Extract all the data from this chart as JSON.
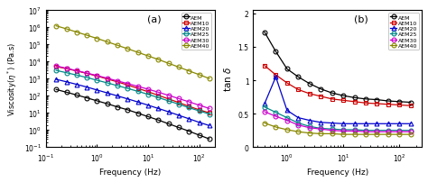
{
  "freq_a": [
    0.1585,
    0.2512,
    0.3981,
    0.631,
    1.0,
    1.585,
    2.512,
    3.981,
    6.31,
    10.0,
    15.85,
    25.12,
    39.81,
    63.1,
    100.0,
    158.5
  ],
  "viscosity": {
    "AEM": [
      230,
      160,
      110,
      75,
      50,
      34,
      22,
      15,
      9.5,
      6.0,
      3.8,
      2.3,
      1.4,
      0.85,
      0.5,
      0.3
    ],
    "AEM10": [
      5000,
      3800,
      2800,
      2000,
      1400,
      950,
      640,
      420,
      270,
      170,
      105,
      65,
      40,
      24,
      15,
      10
    ],
    "AEM20": [
      900,
      650,
      460,
      320,
      215,
      145,
      97,
      65,
      43,
      28,
      18,
      11.5,
      7.2,
      4.5,
      2.8,
      1.8
    ],
    "AEM25": [
      3000,
      2200,
      1600,
      1150,
      800,
      560,
      385,
      265,
      180,
      120,
      78,
      50,
      32,
      20,
      13,
      8.5
    ],
    "AEM30": [
      5500,
      4000,
      2900,
      2100,
      1500,
      1050,
      730,
      510,
      350,
      240,
      160,
      105,
      68,
      44,
      28,
      18
    ],
    "AEM40": [
      1200000,
      800000,
      520000,
      340000,
      220000,
      140000,
      88000,
      55000,
      34000,
      21000,
      13000,
      7800,
      4700,
      2800,
      1700,
      1000
    ]
  },
  "freq_b": [
    0.3981,
    0.631,
    1.0,
    1.585,
    2.512,
    3.981,
    6.31,
    10.0,
    15.85,
    25.12,
    39.81,
    63.1,
    100.0,
    158.5
  ],
  "tan_delta": {
    "AEM": [
      1.72,
      1.43,
      1.17,
      1.05,
      0.95,
      0.87,
      0.81,
      0.77,
      0.74,
      0.72,
      0.71,
      0.69,
      0.68,
      0.67
    ],
    "AEM10": [
      1.22,
      1.08,
      0.96,
      0.86,
      0.8,
      0.76,
      0.72,
      0.7,
      0.68,
      0.66,
      0.65,
      0.64,
      0.63,
      0.62
    ],
    "AEM20": [
      0.65,
      1.05,
      0.55,
      0.44,
      0.4,
      0.37,
      0.36,
      0.35,
      0.35,
      0.35,
      0.35,
      0.35,
      0.35,
      0.35
    ],
    "AEM25": [
      0.6,
      0.52,
      0.44,
      0.36,
      0.31,
      0.28,
      0.27,
      0.26,
      0.26,
      0.25,
      0.25,
      0.25,
      0.25,
      0.25
    ],
    "AEM30": [
      0.53,
      0.46,
      0.4,
      0.33,
      0.29,
      0.27,
      0.25,
      0.24,
      0.24,
      0.23,
      0.23,
      0.23,
      0.23,
      0.23
    ],
    "AEM40": [
      0.36,
      0.3,
      0.26,
      0.23,
      0.21,
      0.2,
      0.2,
      0.19,
      0.19,
      0.19,
      0.19,
      0.19,
      0.19,
      0.19
    ]
  },
  "colors": {
    "AEM": "#000000",
    "AEM10": "#cc0000",
    "AEM20": "#0000cc",
    "AEM25": "#008888",
    "AEM30": "#cc00cc",
    "AEM40": "#888800"
  },
  "markers": {
    "AEM": "o",
    "AEM10": "s",
    "AEM20": "^",
    "AEM25": "o",
    "AEM30": "o",
    "AEM40": "o"
  },
  "labels_a": {
    "AEM": "AEM",
    "AEM10": "AEM10",
    "AEM20": "AEM20",
    "AEM25": "AEM25",
    "AEM30": "AEM30",
    "AEM40": "AEM40"
  },
  "labels_b": {
    "AEM": "AEM",
    "AEM10": "AEM10",
    "AEM20": "AEM20",
    "AEM25": "AEM25",
    "AEM30": "AEM30",
    "AEM40": "AEM40"
  },
  "bg_color": "#ffffff"
}
